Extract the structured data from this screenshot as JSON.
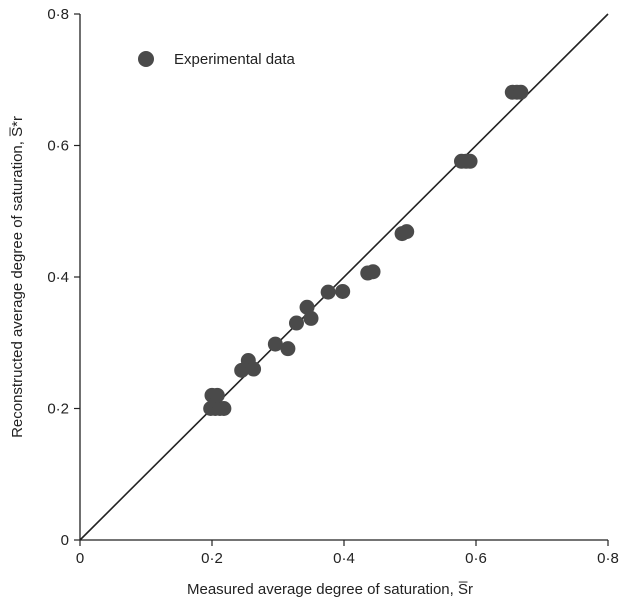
{
  "chart_data": {
    "type": "scatter",
    "xlabel": "Measured average degree of saturation, S̅r",
    "ylabel": "Reconstructed average degree of saturation, S̅*r",
    "xlim": [
      0,
      0.8
    ],
    "ylim": [
      0,
      0.8
    ],
    "x_ticks": [
      "0",
      "0·2",
      "0·4",
      "0·6",
      "0·8"
    ],
    "y_ticks": [
      "0",
      "0·2",
      "0·4",
      "0·6",
      "0·8"
    ],
    "x_tick_values": [
      0,
      0.2,
      0.4,
      0.6,
      0.8
    ],
    "y_tick_values": [
      0,
      0.2,
      0.4,
      0.6,
      0.8
    ],
    "grid": false,
    "legend_position": "top-left",
    "marker_color": "#4a4a4a",
    "series": [
      {
        "name": "Experimental data",
        "points": [
          [
            0.198,
            0.2
          ],
          [
            0.205,
            0.2
          ],
          [
            0.212,
            0.2
          ],
          [
            0.218,
            0.2
          ],
          [
            0.2,
            0.22
          ],
          [
            0.208,
            0.22
          ],
          [
            0.245,
            0.258
          ],
          [
            0.255,
            0.273
          ],
          [
            0.263,
            0.26
          ],
          [
            0.296,
            0.298
          ],
          [
            0.315,
            0.291
          ],
          [
            0.328,
            0.33
          ],
          [
            0.344,
            0.354
          ],
          [
            0.35,
            0.337
          ],
          [
            0.376,
            0.377
          ],
          [
            0.398,
            0.378
          ],
          [
            0.436,
            0.406
          ],
          [
            0.444,
            0.408
          ],
          [
            0.488,
            0.466
          ],
          [
            0.495,
            0.469
          ],
          [
            0.578,
            0.576
          ],
          [
            0.585,
            0.576
          ],
          [
            0.591,
            0.576
          ],
          [
            0.655,
            0.681
          ],
          [
            0.662,
            0.681
          ],
          [
            0.668,
            0.681
          ]
        ]
      }
    ],
    "reference_line": {
      "from": [
        0,
        0
      ],
      "to": [
        0.8,
        0.8
      ]
    }
  }
}
